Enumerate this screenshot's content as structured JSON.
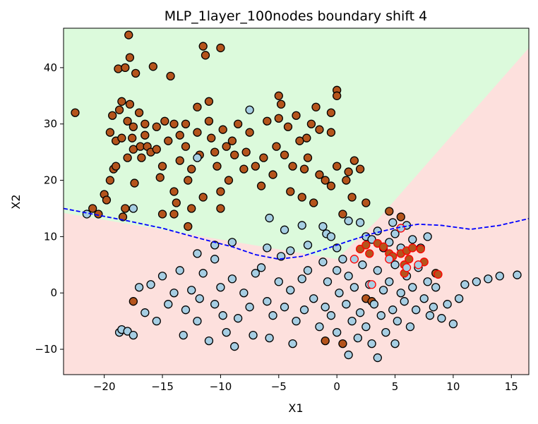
{
  "chart_data": {
    "type": "scatter",
    "title": "MLP_1layer_100nodes boundary shift 4",
    "xlabel": "X1",
    "ylabel": "X2",
    "xlim": [
      -23.5,
      16.5
    ],
    "ylim": [
      -14.5,
      47
    ],
    "xticks": [
      -20,
      -15,
      -10,
      -5,
      0,
      5,
      10,
      15
    ],
    "yticks": [
      -10,
      0,
      10,
      20,
      30,
      40
    ],
    "xtick_labels": [
      "−20",
      "−15",
      "−10",
      "−5",
      "0",
      "5",
      "10",
      "15"
    ],
    "ytick_labels": [
      "−10",
      "0",
      "10",
      "20",
      "30",
      "40"
    ],
    "grid": false,
    "legend": "none",
    "colors": {
      "class_upper_region": "#dcfadc",
      "class_lower_region": "#fde0dd",
      "class_brown": "#b5541c",
      "class_lightblue": "#a6cee3",
      "marker_edge": "#000000",
      "highlight_edge": "#ff0000",
      "boundary_line": "#0000ff"
    },
    "decision_region_upper": [
      [
        -23.5,
        47
      ],
      [
        16.5,
        47
      ],
      [
        16.5,
        43.5
      ],
      [
        3.5,
        13
      ],
      [
        0,
        6
      ],
      [
        -23.5,
        14.2
      ]
    ],
    "boundary_line": {
      "style": "dashed",
      "points": [
        [
          -23.5,
          15
        ],
        [
          -21,
          14
        ],
        [
          -18,
          12.8
        ],
        [
          -15,
          11.5
        ],
        [
          -12,
          9.8
        ],
        [
          -9,
          8.2
        ],
        [
          -7,
          6.8
        ],
        [
          -5,
          6
        ],
        [
          -3,
          6.5
        ],
        [
          -1,
          7.8
        ],
        [
          1,
          9.2
        ],
        [
          3,
          10.5
        ],
        [
          5,
          11.5
        ],
        [
          7,
          12.2
        ],
        [
          9,
          12
        ],
        [
          11.5,
          11.3
        ],
        [
          14,
          12
        ],
        [
          16.5,
          13.2
        ]
      ]
    },
    "series": [
      {
        "marker_color": "#b5541c",
        "points": [
          [
            -22.5,
            32
          ],
          [
            -21,
            15
          ],
          [
            -20.5,
            14
          ],
          [
            -20,
            17.5
          ],
          [
            -19.8,
            16.5
          ],
          [
            -19.5,
            20
          ],
          [
            -19.5,
            28.5
          ],
          [
            -19.3,
            31.5
          ],
          [
            -19.2,
            22
          ],
          [
            -19,
            27
          ],
          [
            -19,
            22.5
          ],
          [
            -18.8,
            39.8
          ],
          [
            -18.7,
            32.5
          ],
          [
            -18.5,
            34
          ],
          [
            -18.5,
            27.5
          ],
          [
            -18.4,
            13.5
          ],
          [
            -18.2,
            15
          ],
          [
            -18.2,
            40
          ],
          [
            -18,
            24
          ],
          [
            -18,
            30.5
          ],
          [
            -17.9,
            45.8
          ],
          [
            -17.8,
            33.5
          ],
          [
            -17.8,
            41.8
          ],
          [
            -17.6,
            27.5
          ],
          [
            -17.5,
            25.5
          ],
          [
            -17.5,
            29.5
          ],
          [
            -17.4,
            19.5
          ],
          [
            -17.3,
            39
          ],
          [
            -17,
            32
          ],
          [
            -16.9,
            26
          ],
          [
            -16.8,
            24
          ],
          [
            -16.5,
            30
          ],
          [
            -16.5,
            28
          ],
          [
            -16.3,
            26
          ],
          [
            -16,
            25
          ],
          [
            -15.8,
            40.2
          ],
          [
            -15.5,
            29.5
          ],
          [
            -15.5,
            25.5
          ],
          [
            -15.2,
            20.5
          ],
          [
            -15,
            22.5
          ],
          [
            -15,
            14
          ],
          [
            -14.8,
            30.5
          ],
          [
            -14.5,
            27
          ],
          [
            -14.3,
            38.5
          ],
          [
            -14,
            30
          ],
          [
            -14,
            18
          ],
          [
            -14,
            14
          ],
          [
            -13.8,
            16
          ],
          [
            -13.5,
            23.5
          ],
          [
            -13.5,
            28
          ],
          [
            -13,
            30
          ],
          [
            -13,
            26
          ],
          [
            -12.8,
            11.8
          ],
          [
            -12.8,
            20
          ],
          [
            -12.5,
            15
          ],
          [
            -12.5,
            22
          ],
          [
            -12,
            33
          ],
          [
            -12,
            28.5
          ],
          [
            -11.8,
            24.5
          ],
          [
            -11.5,
            43.8
          ],
          [
            -11.5,
            17
          ],
          [
            -11.3,
            42.2
          ],
          [
            -11,
            34
          ],
          [
            -11,
            30.5
          ],
          [
            -10.8,
            27.5
          ],
          [
            -10.5,
            25
          ],
          [
            -10.3,
            22.5
          ],
          [
            -10,
            15
          ],
          [
            -10,
            18
          ],
          [
            -10,
            43.5
          ],
          [
            -9.8,
            29
          ],
          [
            -9.5,
            26
          ],
          [
            -9.3,
            20
          ],
          [
            -9,
            27
          ],
          [
            -8.8,
            24.5
          ],
          [
            -8.5,
            30
          ],
          [
            -8,
            22
          ],
          [
            -7.8,
            25
          ],
          [
            -7.5,
            28.5
          ],
          [
            -7,
            22.5
          ],
          [
            -6.5,
            19
          ],
          [
            -6.3,
            24
          ],
          [
            -6,
            30.5
          ],
          [
            -5.5,
            21
          ],
          [
            -5.2,
            26
          ],
          [
            -5,
            35
          ],
          [
            -5,
            31
          ],
          [
            -4.8,
            33.5
          ],
          [
            -4.5,
            24.5
          ],
          [
            -4.2,
            29.5
          ],
          [
            -4,
            18
          ],
          [
            -3.8,
            22.5
          ],
          [
            -3.5,
            31.5
          ],
          [
            -3.2,
            27
          ],
          [
            -3,
            17
          ],
          [
            -2.8,
            22
          ],
          [
            -2.6,
            27.5
          ],
          [
            -2.5,
            24
          ],
          [
            -2.2,
            30
          ],
          [
            -2,
            16
          ],
          [
            -1.8,
            33
          ],
          [
            -1.5,
            29
          ],
          [
            -1.5,
            21
          ],
          [
            -1,
            20
          ],
          [
            -0.5,
            19
          ],
          [
            -0.5,
            28.5
          ],
          [
            -0.5,
            32
          ],
          [
            0,
            36
          ],
          [
            0,
            35
          ],
          [
            0,
            22.5
          ],
          [
            0.5,
            14
          ],
          [
            0.8,
            20
          ],
          [
            1,
            21.5
          ],
          [
            1.3,
            17
          ],
          [
            1.5,
            23.5
          ],
          [
            2,
            22
          ],
          [
            2.5,
            16
          ],
          [
            4.5,
            14.5
          ],
          [
            5.5,
            13.5
          ],
          [
            -1,
            -8.5
          ],
          [
            0.5,
            -9
          ],
          [
            2.5,
            -1
          ],
          [
            3,
            -1.5
          ],
          [
            8.5,
            3.5
          ],
          [
            -17.5,
            -1.5
          ]
        ]
      },
      {
        "marker_color": "#a6cee3",
        "points": [
          [
            -21.5,
            14
          ],
          [
            -18.7,
            -7
          ],
          [
            -18.5,
            -6.5
          ],
          [
            -18,
            -6.8
          ],
          [
            -17.5,
            15
          ],
          [
            -17.5,
            -7.5
          ],
          [
            -17,
            1
          ],
          [
            -16.5,
            -3.5
          ],
          [
            -16,
            1.5
          ],
          [
            -15.5,
            -5
          ],
          [
            -15,
            3
          ],
          [
            -14.5,
            -2
          ],
          [
            -14,
            0
          ],
          [
            -13.5,
            4
          ],
          [
            -13.2,
            -7.5
          ],
          [
            -13,
            -3
          ],
          [
            -12.5,
            0.5
          ],
          [
            -12,
            -5
          ],
          [
            -11.8,
            -1
          ],
          [
            -11.5,
            3.5
          ],
          [
            -11,
            -8.5
          ],
          [
            -10.5,
            -2
          ],
          [
            -10.5,
            6
          ],
          [
            -10,
            1
          ],
          [
            -9.8,
            -4
          ],
          [
            -9.5,
            -7
          ],
          [
            -9,
            2.5
          ],
          [
            -8.8,
            -9.5
          ],
          [
            -8.5,
            -4.5
          ],
          [
            -8,
            0
          ],
          [
            -7.5,
            -2.5
          ],
          [
            -7.2,
            -7.5
          ],
          [
            -7,
            3.5
          ],
          [
            -6.5,
            4.5
          ],
          [
            -6,
            -1.5
          ],
          [
            -5.8,
            -8
          ],
          [
            -5.5,
            -4
          ],
          [
            -5,
            2
          ],
          [
            -4.8,
            6.5
          ],
          [
            -4.5,
            -2.5
          ],
          [
            -4,
            0.5
          ],
          [
            -3.8,
            -9
          ],
          [
            -3.5,
            -5
          ],
          [
            -3,
            2.5
          ],
          [
            -2.8,
            -3
          ],
          [
            -2.5,
            4
          ],
          [
            -2,
            -1
          ],
          [
            -1.5,
            -6
          ],
          [
            -1.2,
            5.5
          ],
          [
            -1,
            -2.5
          ],
          [
            -0.8,
            2
          ],
          [
            -0.5,
            -4
          ],
          [
            0,
            4
          ],
          [
            0,
            -7
          ],
          [
            0.2,
            0
          ],
          [
            0.5,
            6
          ],
          [
            0.8,
            -2
          ],
          [
            1,
            -11
          ],
          [
            1,
            3
          ],
          [
            1.3,
            -5
          ],
          [
            1.5,
            1
          ],
          [
            1.8,
            -8
          ],
          [
            2,
            -3.5
          ],
          [
            2.2,
            5
          ],
          [
            2.5,
            -6
          ],
          [
            2.8,
            1.5
          ],
          [
            3,
            -9
          ],
          [
            3.2,
            -2
          ],
          [
            3.5,
            4
          ],
          [
            3.5,
            -11.5
          ],
          [
            3.8,
            -4
          ],
          [
            4,
            0.5
          ],
          [
            4.2,
            -7
          ],
          [
            4.5,
            2
          ],
          [
            4.8,
            -3
          ],
          [
            5,
            -9
          ],
          [
            5,
            5
          ],
          [
            5.2,
            -5
          ],
          [
            5.5,
            0
          ],
          [
            5.8,
            -1.5
          ],
          [
            6,
            3
          ],
          [
            6.3,
            -6
          ],
          [
            6.5,
            1
          ],
          [
            6.8,
            -3
          ],
          [
            7,
            4.5
          ],
          [
            7.5,
            -1
          ],
          [
            7.8,
            2
          ],
          [
            8,
            -4
          ],
          [
            8.3,
            -2.5
          ],
          [
            8.5,
            1
          ],
          [
            9,
            -4.5
          ],
          [
            9.5,
            -2
          ],
          [
            10,
            -5.5
          ],
          [
            10.5,
            -1
          ],
          [
            11,
            1.5
          ],
          [
            12,
            2
          ],
          [
            13,
            2.5
          ],
          [
            14,
            3
          ],
          [
            15.5,
            3.2
          ],
          [
            -7.5,
            32.5
          ],
          [
            -12,
            24
          ],
          [
            -5.8,
            13.3
          ],
          [
            -4.5,
            11.2
          ],
          [
            -3,
            12
          ],
          [
            -1.2,
            11.8
          ],
          [
            -0.9,
            10.5
          ],
          [
            -0.5,
            10
          ],
          [
            1,
            12.8
          ],
          [
            2,
            12.5
          ],
          [
            2.5,
            10
          ],
          [
            3,
            9.5
          ],
          [
            3.5,
            11
          ],
          [
            4,
            8
          ],
          [
            4.5,
            9
          ],
          [
            4.8,
            12.5
          ],
          [
            5,
            10.5
          ],
          [
            5.5,
            8
          ],
          [
            6,
            12
          ],
          [
            6.5,
            9.5
          ],
          [
            7.2,
            8
          ],
          [
            7.8,
            10
          ],
          [
            -9,
            9
          ],
          [
            -6,
            8
          ],
          [
            -4,
            7.5
          ],
          [
            -2.5,
            8.5
          ],
          [
            0,
            8
          ],
          [
            -10.5,
            8.5
          ],
          [
            -12,
            7
          ]
        ]
      },
      {
        "marker_color": "#b5541c",
        "edge": "#ff0000",
        "points": [
          [
            2,
            7.8
          ],
          [
            2.5,
            8.5
          ],
          [
            3.5,
            8.8
          ],
          [
            4,
            8.2
          ],
          [
            4.5,
            7
          ],
          [
            4.8,
            6.5
          ],
          [
            5.5,
            7
          ],
          [
            5.8,
            5
          ],
          [
            6,
            7.5
          ],
          [
            6.2,
            6
          ],
          [
            6.5,
            8
          ],
          [
            7.2,
            7.8
          ],
          [
            7.5,
            5.5
          ],
          [
            5.8,
            3.5
          ],
          [
            2.8,
            7
          ],
          [
            8.7,
            3.3
          ]
        ]
      },
      {
        "marker_color": "#a6cee3",
        "edge": "#ff0000",
        "points": [
          [
            3,
            1.5
          ],
          [
            4.5,
            6
          ],
          [
            5.5,
            11.5
          ],
          [
            6,
            4.5
          ],
          [
            7,
            5
          ],
          [
            1.5,
            6
          ]
        ]
      }
    ]
  }
}
